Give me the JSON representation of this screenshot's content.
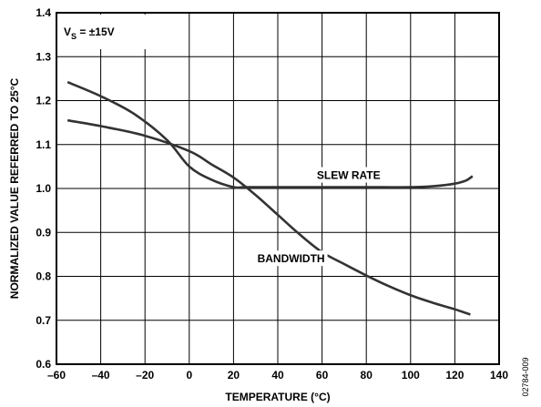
{
  "chart_data": {
    "type": "line",
    "title": "",
    "xlabel": "TEMPERATURE (°C)",
    "ylabel": "NORMALIZED VALUE REFERRED TO 25°C",
    "xlim": [
      -60,
      140
    ],
    "ylim": [
      0.6,
      1.4
    ],
    "x_ticks": [
      -60,
      -40,
      -20,
      0,
      20,
      40,
      60,
      80,
      100,
      120,
      140
    ],
    "x_tick_labels": [
      "–60",
      "–40",
      "–20",
      "0",
      "20",
      "40",
      "60",
      "80",
      "100",
      "120",
      "140"
    ],
    "y_ticks": [
      0.6,
      0.7,
      0.8,
      0.9,
      1.0,
      1.1,
      1.2,
      1.3,
      1.4
    ],
    "y_tick_labels": [
      "0.6",
      "0.7",
      "0.8",
      "0.9",
      "1.0",
      "1.1",
      "1.2",
      "1.3",
      "1.4"
    ],
    "grid": true,
    "legend": "none",
    "line_color": "#333333",
    "series": [
      {
        "name": "SLEW RATE",
        "x": [
          -55,
          -40,
          -25,
          -10,
          0,
          10,
          20,
          25,
          40,
          60,
          80,
          100,
          110,
          120,
          125,
          128
        ],
        "y": [
          1.242,
          1.21,
          1.17,
          1.11,
          1.05,
          1.02,
          1.003,
          1.003,
          1.003,
          1.003,
          1.003,
          1.003,
          1.005,
          1.011,
          1.018,
          1.028
        ]
      },
      {
        "name": "BANDWIDTH",
        "x": [
          -55,
          -40,
          -20,
          0,
          10,
          20,
          30,
          40,
          50,
          60,
          70,
          80,
          90,
          100,
          110,
          120,
          127
        ],
        "y": [
          1.155,
          1.142,
          1.12,
          1.085,
          1.055,
          1.025,
          0.985,
          0.94,
          0.895,
          0.855,
          0.828,
          0.802,
          0.778,
          0.757,
          0.74,
          0.725,
          0.713
        ]
      }
    ],
    "annotations": [
      {
        "text": "SLEW RATE",
        "x": 72,
        "y": 1.03
      },
      {
        "text": "BANDWIDTH",
        "x": 46,
        "y": 0.84
      }
    ],
    "condition_label": {
      "prefix": "V",
      "sub": "S",
      "suffix": " = ±15V"
    },
    "figure_id": "02784-009"
  }
}
